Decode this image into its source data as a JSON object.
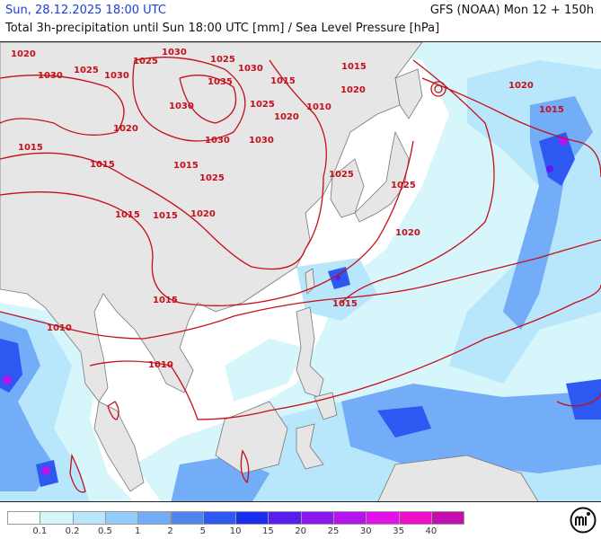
{
  "header": {
    "date": "Sun, 28.12.2025 18:00 UTC",
    "model": "GFS (NOAA) Mon 12 + 150h",
    "description": "Total 3h-precipitation until Sun 18:00 UTC [mm] / Sea Level Pressure [hPa]"
  },
  "colors": {
    "land": "#e6e6e6",
    "sea": "#ffffff",
    "isobar": "#c4101a",
    "date_text": "#1a3fd6"
  },
  "isobar_labels": [
    {
      "text": "1020"
    },
    {
      "text": "1030"
    },
    {
      "text": "1025"
    },
    {
      "text": "1030"
    },
    {
      "text": "1025"
    },
    {
      "text": "1030"
    },
    {
      "text": "1035"
    },
    {
      "text": "1030"
    },
    {
      "text": "1025"
    },
    {
      "text": "1015"
    },
    {
      "text": "1020"
    },
    {
      "text": "1015"
    },
    {
      "text": "1030"
    },
    {
      "text": "1025"
    },
    {
      "text": "1020"
    },
    {
      "text": "1030"
    },
    {
      "text": "1010"
    },
    {
      "text": "1015"
    },
    {
      "text": "1030"
    },
    {
      "text": "1025"
    },
    {
      "text": "1015"
    },
    {
      "text": "1020"
    },
    {
      "text": "1015"
    },
    {
      "text": "1015"
    },
    {
      "text": "1015"
    },
    {
      "text": "1025"
    },
    {
      "text": "1020"
    },
    {
      "text": "1020"
    },
    {
      "text": "1015"
    },
    {
      "text": "1010"
    },
    {
      "text": "1010"
    },
    {
      "text": "1020"
    },
    {
      "text": "1015"
    },
    {
      "text": "1025"
    },
    {
      "text": "1015"
    }
  ],
  "legend": {
    "ticks": [
      "0.1",
      "0.2",
      "0.5",
      "1",
      "2",
      "5",
      "10",
      "15",
      "20",
      "25",
      "30",
      "35",
      "40"
    ],
    "swatches": [
      "#ffffff",
      "#d7f6fb",
      "#b8e6fb",
      "#93cbfa",
      "#73acf7",
      "#5284f0",
      "#2e58f2",
      "#1a2ef0",
      "#5a1df0",
      "#8a18ee",
      "#b415ec",
      "#e012e8",
      "#f00fc9",
      "#c40fb0"
    ]
  }
}
